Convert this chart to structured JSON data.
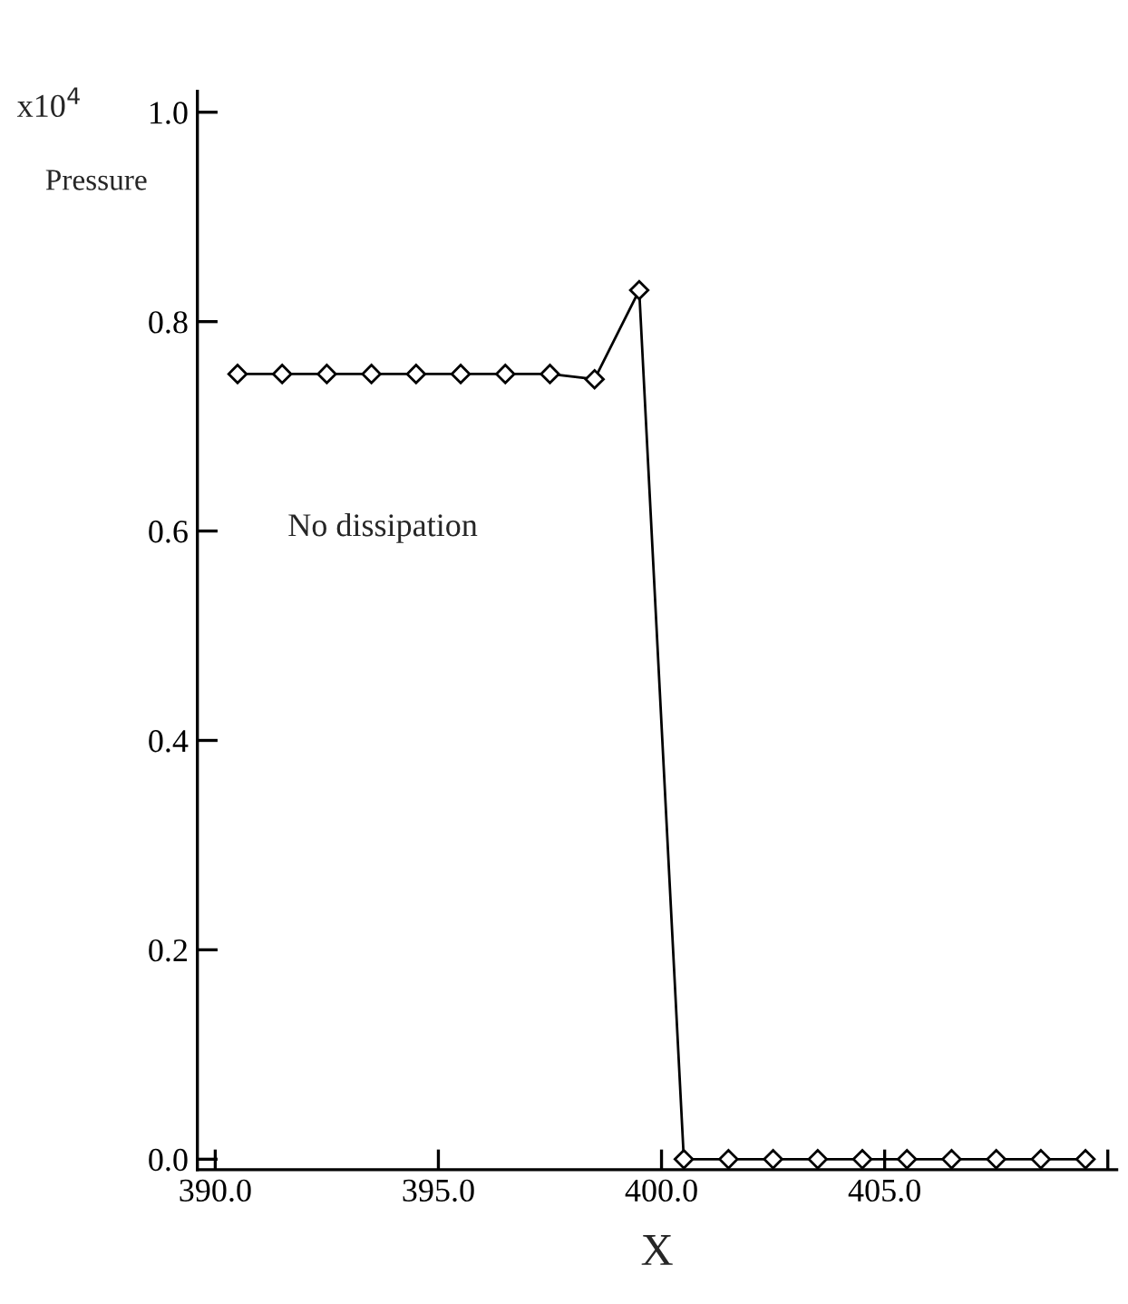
{
  "chart_data": {
    "type": "line",
    "xlabel": "X",
    "ylabel": "Pressure",
    "annotations": [
      "x10$^{4}$",
      "No dissipation"
    ],
    "x": [
      390.5,
      391.5,
      392.5,
      393.5,
      394.5,
      395.5,
      396.5,
      397.5,
      398.5,
      399.5,
      400.5,
      401.5,
      402.5,
      403.5,
      404.5,
      405.5,
      406.5,
      407.5,
      408.5,
      409.5
    ],
    "series": [
      {
        "color": "#000000",
        "values": [
          0.75,
          0.75,
          0.75,
          0.75,
          0.75,
          0.75,
          0.75,
          0.75,
          0.745,
          0.83,
          0.0,
          0.0,
          0.0,
          0.0,
          0.0,
          0.0,
          0.0,
          0.0,
          0.0,
          0.0
        ]
      }
    ],
    "marker": "diamond",
    "line_style": "solid",
    "grid": false,
    "legend": false,
    "xlim": [
      389.6,
      410.2
    ],
    "ylim": [
      -0.01,
      1.02
    ],
    "xticks": [
      {
        "value": 390,
        "label": "390.0"
      },
      {
        "value": 395,
        "label": "395.0"
      },
      {
        "value": 400,
        "label": "400.0"
      },
      {
        "value": 405,
        "label": "405.0"
      },
      {
        "value": 410,
        "label": null
      }
    ],
    "yticks": [
      {
        "value": 0,
        "label": "0.0"
      },
      {
        "value": 0.2,
        "label": "0.2"
      },
      {
        "value": 0.4,
        "label": "0.4"
      },
      {
        "value": 0.6,
        "label": "0.6"
      },
      {
        "value": 0.8,
        "label": "0.8"
      },
      {
        "value": 1.0,
        "label": "1.0"
      }
    ]
  }
}
